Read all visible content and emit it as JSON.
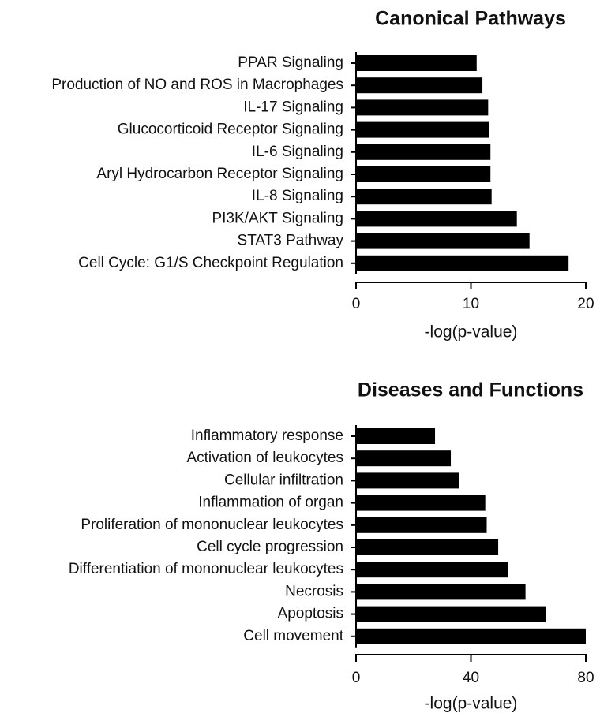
{
  "chart_data": [
    {
      "type": "bar",
      "orientation": "horizontal",
      "title": "Canonical Pathways",
      "xlabel": "-log(p-value)",
      "ylabel": "",
      "xlim": [
        0,
        20
      ],
      "xticks": [
        0,
        10,
        20
      ],
      "categories": [
        "PPAR Signaling",
        "Production of NO and ROS in Macrophages",
        "IL-17 Signaling",
        "Glucocorticoid Receptor Signaling",
        "IL-6 Signaling",
        "Aryl Hydrocarbon Receptor Signaling",
        "IL-8 Signaling",
        "PI3K/AKT Signaling",
        "STAT3 Pathway",
        "Cell Cycle: G1/S Checkpoint Regulation"
      ],
      "values": [
        10.5,
        11.0,
        11.5,
        11.6,
        11.7,
        11.7,
        11.8,
        14.0,
        15.1,
        18.5
      ],
      "color": "#000000"
    },
    {
      "type": "bar",
      "orientation": "horizontal",
      "title": "Diseases and Functions",
      "xlabel": "-log(p-value)",
      "ylabel": "",
      "xlim": [
        0,
        80
      ],
      "xticks": [
        0,
        40,
        80
      ],
      "categories": [
        "Inflammatory response",
        "Activation of leukocytes",
        "Cellular infiltration",
        "Inflammation of organ",
        "Proliferation of mononuclear leukocytes",
        "Cell cycle progression",
        "Differentiation of mononuclear leukocytes",
        "Necrosis",
        "Apoptosis",
        "Cell movement"
      ],
      "values": [
        27.5,
        33,
        36,
        45,
        45.5,
        49.5,
        53,
        59,
        66,
        80
      ],
      "color": "#000000"
    }
  ]
}
